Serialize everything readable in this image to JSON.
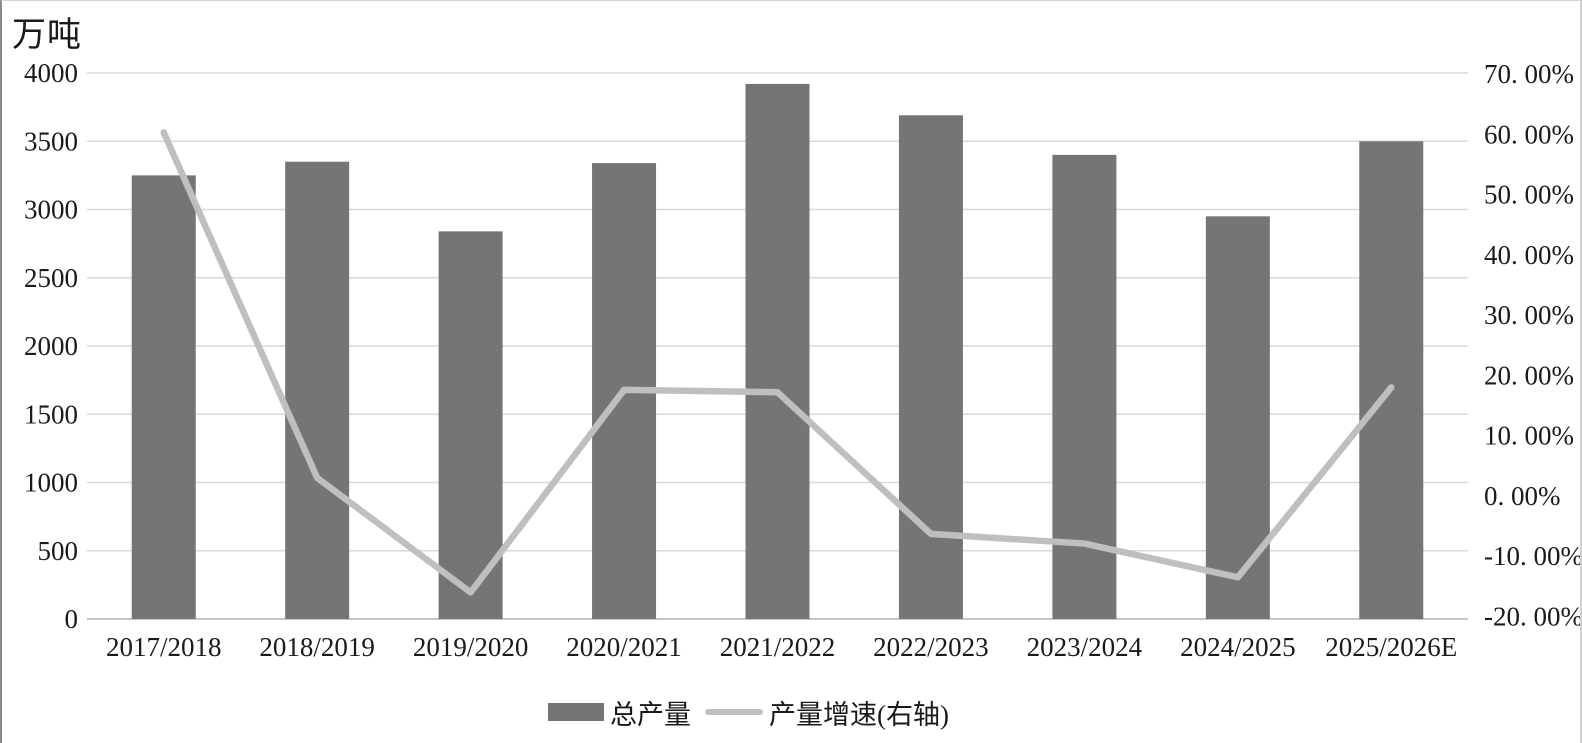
{
  "title": "万吨",
  "colors": {
    "bar": "#757575",
    "line": "#bfbfbf",
    "gridline": "#d9d9d9",
    "baseline": "#c6c6c6",
    "text": "#1a1a1a"
  },
  "legend": [
    {
      "label": "总产量",
      "swatch": "bar"
    },
    {
      "label": "产量增速(右轴)",
      "swatch": "line"
    }
  ],
  "chart_data": {
    "type": "combo bar+line",
    "title": "万吨",
    "categories": [
      "2017/2018",
      "2018/2019",
      "2019/2020",
      "2020/2021",
      "2021/2022",
      "2022/2023",
      "2023/2024",
      "2024/2025",
      "2025/2026E"
    ],
    "series": [
      {
        "name": "总产量",
        "type": "bar",
        "axis": "left",
        "unit": "万吨",
        "values": [
          3250,
          3350,
          2840,
          3340,
          3920,
          3690,
          3400,
          2950,
          3500
        ]
      },
      {
        "name": "产量增速(右轴)",
        "type": "line",
        "axis": "right",
        "unit": "%",
        "values": [
          60.3,
          3.0,
          -16.0,
          17.6,
          17.2,
          -6.3,
          -7.9,
          -13.5,
          18.0
        ]
      }
    ],
    "left_axis": {
      "min": 0,
      "max": 4000,
      "step": 500,
      "tick_labels": [
        "4000",
        "3500",
        "3000",
        "2500",
        "2000",
        "1500",
        "1000",
        "500",
        "0"
      ]
    },
    "right_axis": {
      "min": -20,
      "max": 70,
      "step": 10,
      "tick_labels": [
        "70. 00%",
        "60. 00%",
        "50. 00%",
        "40. 00%",
        "30. 00%",
        "20. 00%",
        "10. 00%",
        "0. 00%",
        "-10. 00%",
        "-20. 00%"
      ]
    },
    "grid": true,
    "legend_position": "bottom"
  }
}
